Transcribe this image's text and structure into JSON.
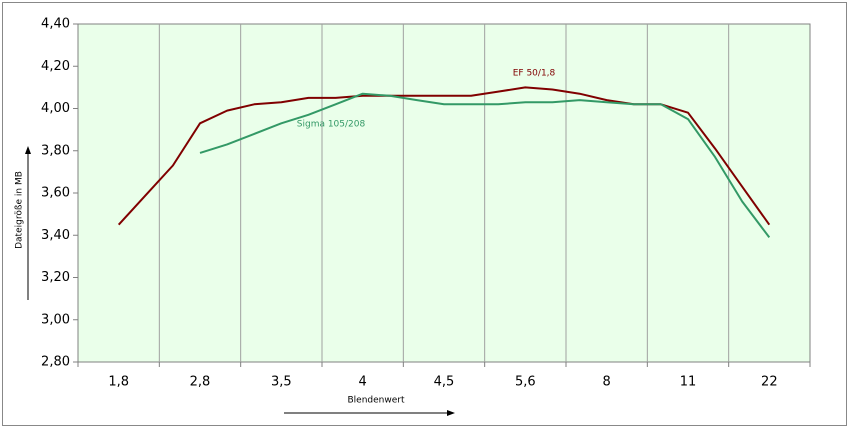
{
  "chart_data": {
    "type": "line",
    "y_label": "Dateigröße in MB",
    "x_label": "Blendenwert",
    "categories": [
      null,
      "1,8",
      null,
      null,
      "2,8",
      null,
      null,
      "3,5",
      null,
      null,
      "4",
      null,
      null,
      "4,5",
      null,
      null,
      "5,6",
      null,
      null,
      "8",
      null,
      null,
      "11",
      null,
      null,
      "22",
      null
    ],
    "series": [
      {
        "name": "EF 50/1,8",
        "color": "#800000",
        "values": [
          null,
          3.45,
          3.59,
          3.73,
          3.93,
          3.99,
          4.02,
          4.03,
          4.05,
          4.05,
          4.06,
          4.06,
          4.06,
          4.06,
          4.06,
          4.08,
          4.1,
          4.09,
          4.07,
          4.04,
          4.02,
          4.02,
          3.98,
          3.81,
          3.63,
          3.45,
          null
        ]
      },
      {
        "name": "Sigma 105/208",
        "color": "#339966",
        "values": [
          null,
          null,
          null,
          null,
          3.79,
          3.83,
          3.88,
          3.93,
          3.97,
          4.02,
          4.07,
          4.06,
          4.04,
          4.02,
          4.02,
          4.02,
          4.03,
          4.03,
          4.04,
          4.03,
          4.02,
          4.02,
          3.95,
          3.77,
          3.56,
          3.39,
          null
        ]
      }
    ],
    "ylim": [
      2.8,
      4.4
    ],
    "yticks": [
      {
        "value": 2.8,
        "label": "2,80"
      },
      {
        "value": 3.0,
        "label": "3,00"
      },
      {
        "value": 3.2,
        "label": "3,20"
      },
      {
        "value": 3.4,
        "label": "3,40"
      },
      {
        "value": 3.6,
        "label": "3,60"
      },
      {
        "value": 3.8,
        "label": "3,80"
      },
      {
        "value": 4.0,
        "label": "4,00"
      },
      {
        "value": 4.2,
        "label": "4,20"
      },
      {
        "value": 4.4,
        "label": "4,40"
      }
    ],
    "plot_background": "#eaffea"
  }
}
